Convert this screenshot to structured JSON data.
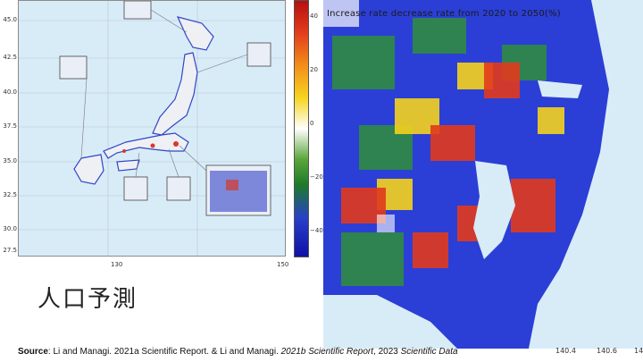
{
  "title": "人口予測",
  "left_map": {
    "y_ticks": [
      "45.0",
      "42.5",
      "40.0",
      "37.5",
      "35.0",
      "32.5",
      "30.0",
      "27.5"
    ],
    "x_ticks": [
      "130",
      "150"
    ]
  },
  "colorbar": {
    "ticks": [
      "40",
      "20",
      "0",
      "−20",
      "−40"
    ]
  },
  "right_map": {
    "label": "Increase rate decrease rate from 2020 to 2050(%)",
    "x_ticks": [
      "140.4",
      "140.6",
      "14"
    ]
  },
  "source": {
    "label": "Source",
    "text_plain": ": Li and Managi. 2021a Scientific Report. & Li and Managi. ",
    "text_italic": "2021b Scientific Report",
    "text_plain2": ", 2023 ",
    "text_italic2": "Scientific Data"
  },
  "colors": {
    "sea": "#d8ecf8",
    "decline": "#2b3fd6",
    "growth": "#e23a1c"
  }
}
